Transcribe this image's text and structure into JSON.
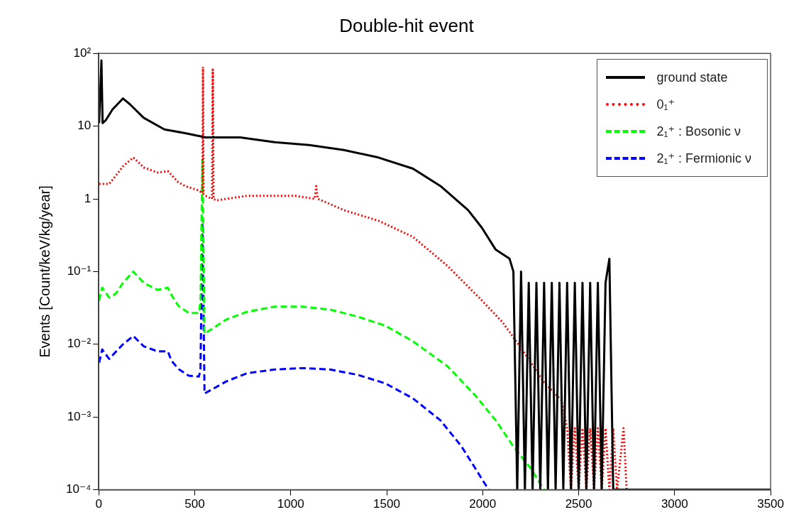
{
  "chart_data": {
    "type": "line",
    "title": "Double-hit event",
    "ylabel": "Events [Count/keV/kg/year]",
    "log": "y",
    "grid": false,
    "legend": "top right",
    "marker": "none",
    "xlim": [
      0,
      3500
    ],
    "xticks": [
      0,
      500,
      1000,
      1500,
      2000,
      2500,
      3000,
      3500
    ],
    "ylim": [
      0.0001,
      100
    ],
    "yticks": [
      {
        "value": 0.0001,
        "label": "10⁻⁴"
      },
      {
        "value": 0.001,
        "label": "10⁻³"
      },
      {
        "value": 0.01,
        "label": "10⁻²"
      },
      {
        "value": 0.1,
        "label": "10⁻¹"
      },
      {
        "value": 1,
        "label": "1"
      },
      {
        "value": 10,
        "label": "10"
      },
      {
        "value": 100,
        "label": "10²"
      }
    ],
    "series": [
      {
        "name": "ground state",
        "color": "#000000",
        "line_style": "solid",
        "x": [
          2,
          14,
          20,
          36,
          72,
          126,
          162,
          234,
          342,
          450,
          557,
          737,
          917,
          1097,
          1277,
          1457,
          1637,
          1780,
          1924,
          1996,
          2068,
          2140,
          2160,
          2180,
          2200,
          2220,
          2240,
          2260,
          2280,
          2300,
          2320,
          2340,
          2360,
          2380,
          2400,
          2420,
          2440,
          2460,
          2480,
          2500,
          2520,
          2540,
          2560,
          2580,
          2600,
          2620,
          2640,
          2660,
          2680,
          3500
        ],
        "values": [
          11,
          80,
          11,
          12,
          17,
          24,
          20,
          13,
          9,
          8,
          7,
          7,
          6,
          5.5,
          4.7,
          3.7,
          2.6,
          1.5,
          0.7,
          0.4,
          0.2,
          0.15,
          0.1,
          0.0001,
          0.1,
          0.0001,
          0.07,
          0.0001,
          0.07,
          0.0001,
          0.07,
          0.0001,
          0.07,
          0.0001,
          0.07,
          0.0001,
          0.07,
          0.0001,
          0.07,
          0.0001,
          0.07,
          0.0001,
          0.07,
          0.0001,
          0.07,
          0.0001,
          0.07,
          0.15,
          0.0001,
          0.0001
        ]
      },
      {
        "name": "0₁⁺",
        "color": "#ff0000",
        "line_style": "dotted",
        "x": [
          2,
          54,
          90,
          126,
          180,
          234,
          306,
          360,
          414,
          450,
          522,
          540,
          543,
          546,
          557,
          590,
          594,
          598,
          612,
          773,
          900,
          1025,
          1125,
          1133,
          1141,
          1277,
          1457,
          1637,
          1816,
          1996,
          2104,
          2212,
          2320,
          2410,
          2440,
          2460,
          2480,
          2500,
          2520,
          2540,
          2560,
          2580,
          2600,
          2620,
          2640,
          2660,
          2680,
          2700,
          2734,
          2750
        ],
        "values": [
          1.6,
          1.6,
          2.1,
          2.8,
          3.7,
          2.7,
          2.3,
          2.4,
          1.7,
          1.5,
          1.3,
          1.2,
          65,
          1.15,
          1.1,
          1.0,
          60,
          1.0,
          0.95,
          1.1,
          1.1,
          1.1,
          1.0,
          1.5,
          1.0,
          0.7,
          0.5,
          0.3,
          0.12,
          0.04,
          0.02,
          0.008,
          0.003,
          0.0017,
          0.0007,
          0.0001,
          0.0007,
          0.0001,
          0.0007,
          0.0001,
          0.0007,
          0.0001,
          0.0007,
          0.0001,
          0.0007,
          0.0001,
          0.0007,
          0.0001,
          0.0007,
          0.0001
        ]
      },
      {
        "name": "2₁⁺ : Bosonic ν",
        "color": "#00ff00",
        "line_style": "dashed",
        "x": [
          2,
          18,
          54,
          90,
          126,
          180,
          234,
          306,
          360,
          378,
          414,
          468,
          522,
          530,
          540,
          551,
          666,
          773,
          917,
          1061,
          1205,
          1349,
          1493,
          1637,
          1816,
          1960,
          2068,
          2158,
          2248,
          2320
        ],
        "values": [
          0.04,
          0.06,
          0.044,
          0.05,
          0.07,
          0.1,
          0.07,
          0.056,
          0.06,
          0.048,
          0.034,
          0.027,
          0.027,
          0.04,
          3.5,
          0.014,
          0.022,
          0.028,
          0.033,
          0.033,
          0.03,
          0.024,
          0.018,
          0.011,
          0.005,
          0.002,
          0.0009,
          0.0004,
          0.0002,
          0.0001
        ]
      },
      {
        "name": "2₁⁺ : Fermionic ν",
        "color": "#0000ff",
        "line_style": "dashed",
        "x": [
          2,
          18,
          54,
          126,
          180,
          234,
          306,
          360,
          378,
          414,
          468,
          522,
          530,
          540,
          551,
          666,
          773,
          917,
          1061,
          1205,
          1349,
          1493,
          1637,
          1780,
          1888,
          1960,
          1996,
          2032
        ],
        "values": [
          0.0056,
          0.0085,
          0.0063,
          0.01,
          0.013,
          0.0094,
          0.008,
          0.008,
          0.006,
          0.0046,
          0.0037,
          0.0036,
          0.0046,
          0.55,
          0.0021,
          0.0031,
          0.004,
          0.0045,
          0.0047,
          0.0045,
          0.0038,
          0.0029,
          0.0018,
          0.0009,
          0.0004,
          0.0002,
          0.00014,
          0.0001
        ]
      }
    ]
  }
}
